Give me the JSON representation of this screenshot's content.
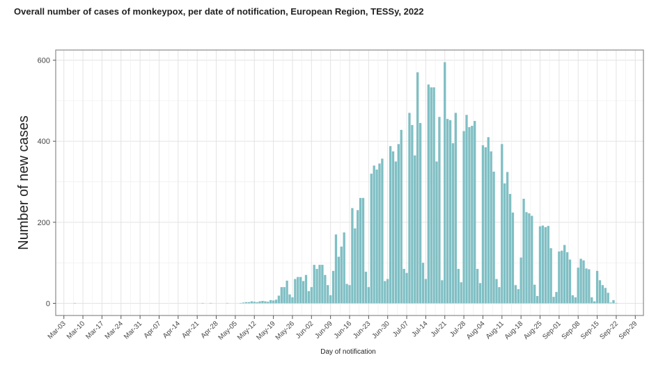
{
  "chart_data": {
    "type": "bar",
    "title": "Overall number of cases of monkeypox, per date of notification, European Region, TESSy, 2022",
    "xlabel": "Day of notification",
    "ylabel": "Number of new cases",
    "xlim": [
      "2022-02-28",
      "2022-10-02"
    ],
    "ylim": [
      -30,
      625
    ],
    "yticks": [
      0,
      200,
      400,
      600
    ],
    "xticks": [
      "Mar-03",
      "Mar-10",
      "Mar-17",
      "Mar-24",
      "Mar-31",
      "Apr-07",
      "Apr-14",
      "Apr-21",
      "Apr-28",
      "May-05",
      "May-12",
      "May-19",
      "May-26",
      "Jun-02",
      "Jun-09",
      "Jun-16",
      "Jun-23",
      "Jun-30",
      "Jul-07",
      "Jul-14",
      "Jul-21",
      "Jul-28",
      "Aug-04",
      "Aug-11",
      "Aug-18",
      "Aug-25",
      "Sep-01",
      "Sep-08",
      "Sep-15",
      "Sep-22",
      "Sep-29"
    ],
    "grid": true,
    "legend": "none",
    "bar_color": "#7fbfc4",
    "start_date": "2022-03-07",
    "values": [
      1,
      0,
      0,
      0,
      0,
      0,
      0,
      0,
      0,
      0,
      0,
      0,
      0,
      0,
      0,
      0,
      0,
      0,
      0,
      0,
      0,
      0,
      0,
      0,
      0,
      0,
      0,
      0,
      0,
      0,
      0,
      0,
      0,
      0,
      0,
      0,
      0,
      0,
      0,
      0,
      0,
      0,
      0,
      0,
      0,
      0,
      0,
      1,
      0,
      0,
      1,
      0,
      0,
      0,
      0,
      0,
      1,
      0,
      0,
      0,
      0,
      1,
      2,
      3,
      3,
      5,
      4,
      3,
      5,
      6,
      5,
      4,
      8,
      7,
      9,
      19,
      40,
      40,
      56,
      22,
      15,
      60,
      65,
      65,
      55,
      70,
      30,
      40,
      95,
      85,
      95,
      95,
      70,
      45,
      20,
      80,
      170,
      115,
      140,
      175,
      48,
      45,
      235,
      185,
      230,
      260,
      260,
      78,
      40,
      320,
      340,
      330,
      345,
      357,
      55,
      60,
      388,
      375,
      350,
      393,
      428,
      85,
      75,
      470,
      440,
      365,
      570,
      445,
      100,
      60,
      540,
      533,
      533,
      350,
      460,
      57,
      595,
      455,
      452,
      395,
      470,
      85,
      52,
      425,
      465,
      435,
      438,
      450,
      85,
      50,
      390,
      385,
      410,
      375,
      325,
      60,
      40,
      393,
      296,
      324,
      270,
      224,
      45,
      35,
      113,
      258,
      225,
      222,
      216,
      46,
      18,
      190,
      192,
      188,
      191,
      136,
      16,
      28,
      128,
      130,
      144,
      126,
      108,
      20,
      15,
      88,
      110,
      106,
      86,
      84,
      15,
      5,
      80,
      57,
      45,
      38,
      26,
      2,
      8,
      1,
      0,
      0
    ]
  }
}
